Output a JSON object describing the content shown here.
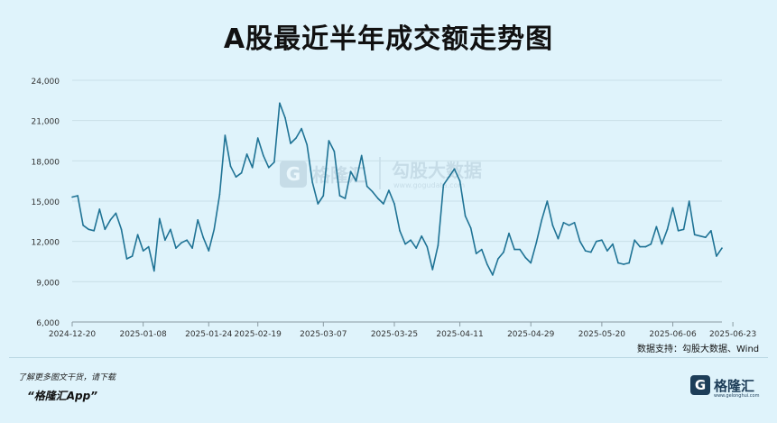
{
  "page": {
    "title": "A股最近半年成交额走势图",
    "source_note": "数据支持：勾股大数据、Wind",
    "footer_note": "了解更多图文干货，请下载",
    "footer_app": "“格隆汇App”",
    "watermark": {
      "brand": "格隆汇",
      "brand2": "勾股大数据",
      "url": "www.gogudata.com"
    },
    "logo": {
      "mark": "G",
      "text": "格隆汇",
      "url": "www.gelonghui.com"
    }
  },
  "colors": {
    "line": "#1f7395",
    "grid": "#c9dfe8",
    "background": "#dff3fb",
    "axis": "#8a9aa2"
  },
  "chart_data": {
    "type": "line",
    "title": "A股最近半年成交额走势图",
    "xlabel": "",
    "ylabel": "",
    "ylim": [
      6000,
      24000
    ],
    "y_ticks": [
      6000,
      9000,
      12000,
      15000,
      18000,
      21000,
      24000
    ],
    "y_tick_labels": [
      "6,000",
      "9,000",
      "12,000",
      "15,000",
      "18,000",
      "21,000",
      "24,000"
    ],
    "x_tick_labels": [
      "2024-12-20",
      "2025-01-08",
      "2025-01-24",
      "2025-02-19",
      "2025-03-07",
      "2025-03-25",
      "2025-04-11",
      "2025-04-29",
      "2025-05-20",
      "2025-06-06",
      "2025-06-23"
    ],
    "x_tick_index": [
      0,
      13,
      25,
      34,
      46,
      59,
      71,
      84,
      97,
      110,
      121
    ],
    "grid": true,
    "legend": "none",
    "series": [
      {
        "values": [
          15300,
          15400,
          13200,
          12900,
          12800,
          14400,
          12900,
          13600,
          14100,
          12900,
          10700,
          10900,
          12500,
          11300,
          11600,
          9800,
          13700,
          12100,
          12900,
          11500,
          11900,
          12100,
          11500,
          13600,
          12300,
          11300,
          12900,
          15500,
          19900,
          17600,
          16800,
          17100,
          18500,
          17500,
          19700,
          18400,
          17500,
          17900,
          22300,
          21200,
          19300,
          19700,
          20400,
          19200,
          16400,
          14800,
          15400,
          19500,
          18700,
          15400,
          15200,
          17200,
          16500,
          18400,
          16100,
          15700,
          15200,
          14800,
          15800,
          14800,
          12800,
          11800,
          12100,
          11500,
          12400,
          11600,
          9900,
          11700,
          16200,
          16800,
          17400,
          16500,
          13900,
          13000,
          11100,
          11400,
          10300,
          9500,
          10700,
          11200,
          12600,
          11400,
          11400,
          10800,
          10400,
          11900,
          13600,
          15000,
          13200,
          12200,
          13400,
          13200,
          13400,
          12000,
          11300,
          11200,
          12000,
          12100,
          11300,
          11800,
          10400,
          10300,
          10400,
          12100,
          11600,
          11600,
          11800,
          13100,
          11800,
          12900,
          14500,
          12800,
          12900,
          15000,
          12500,
          12400,
          12300,
          12800,
          10900,
          11500
        ]
      }
    ]
  }
}
